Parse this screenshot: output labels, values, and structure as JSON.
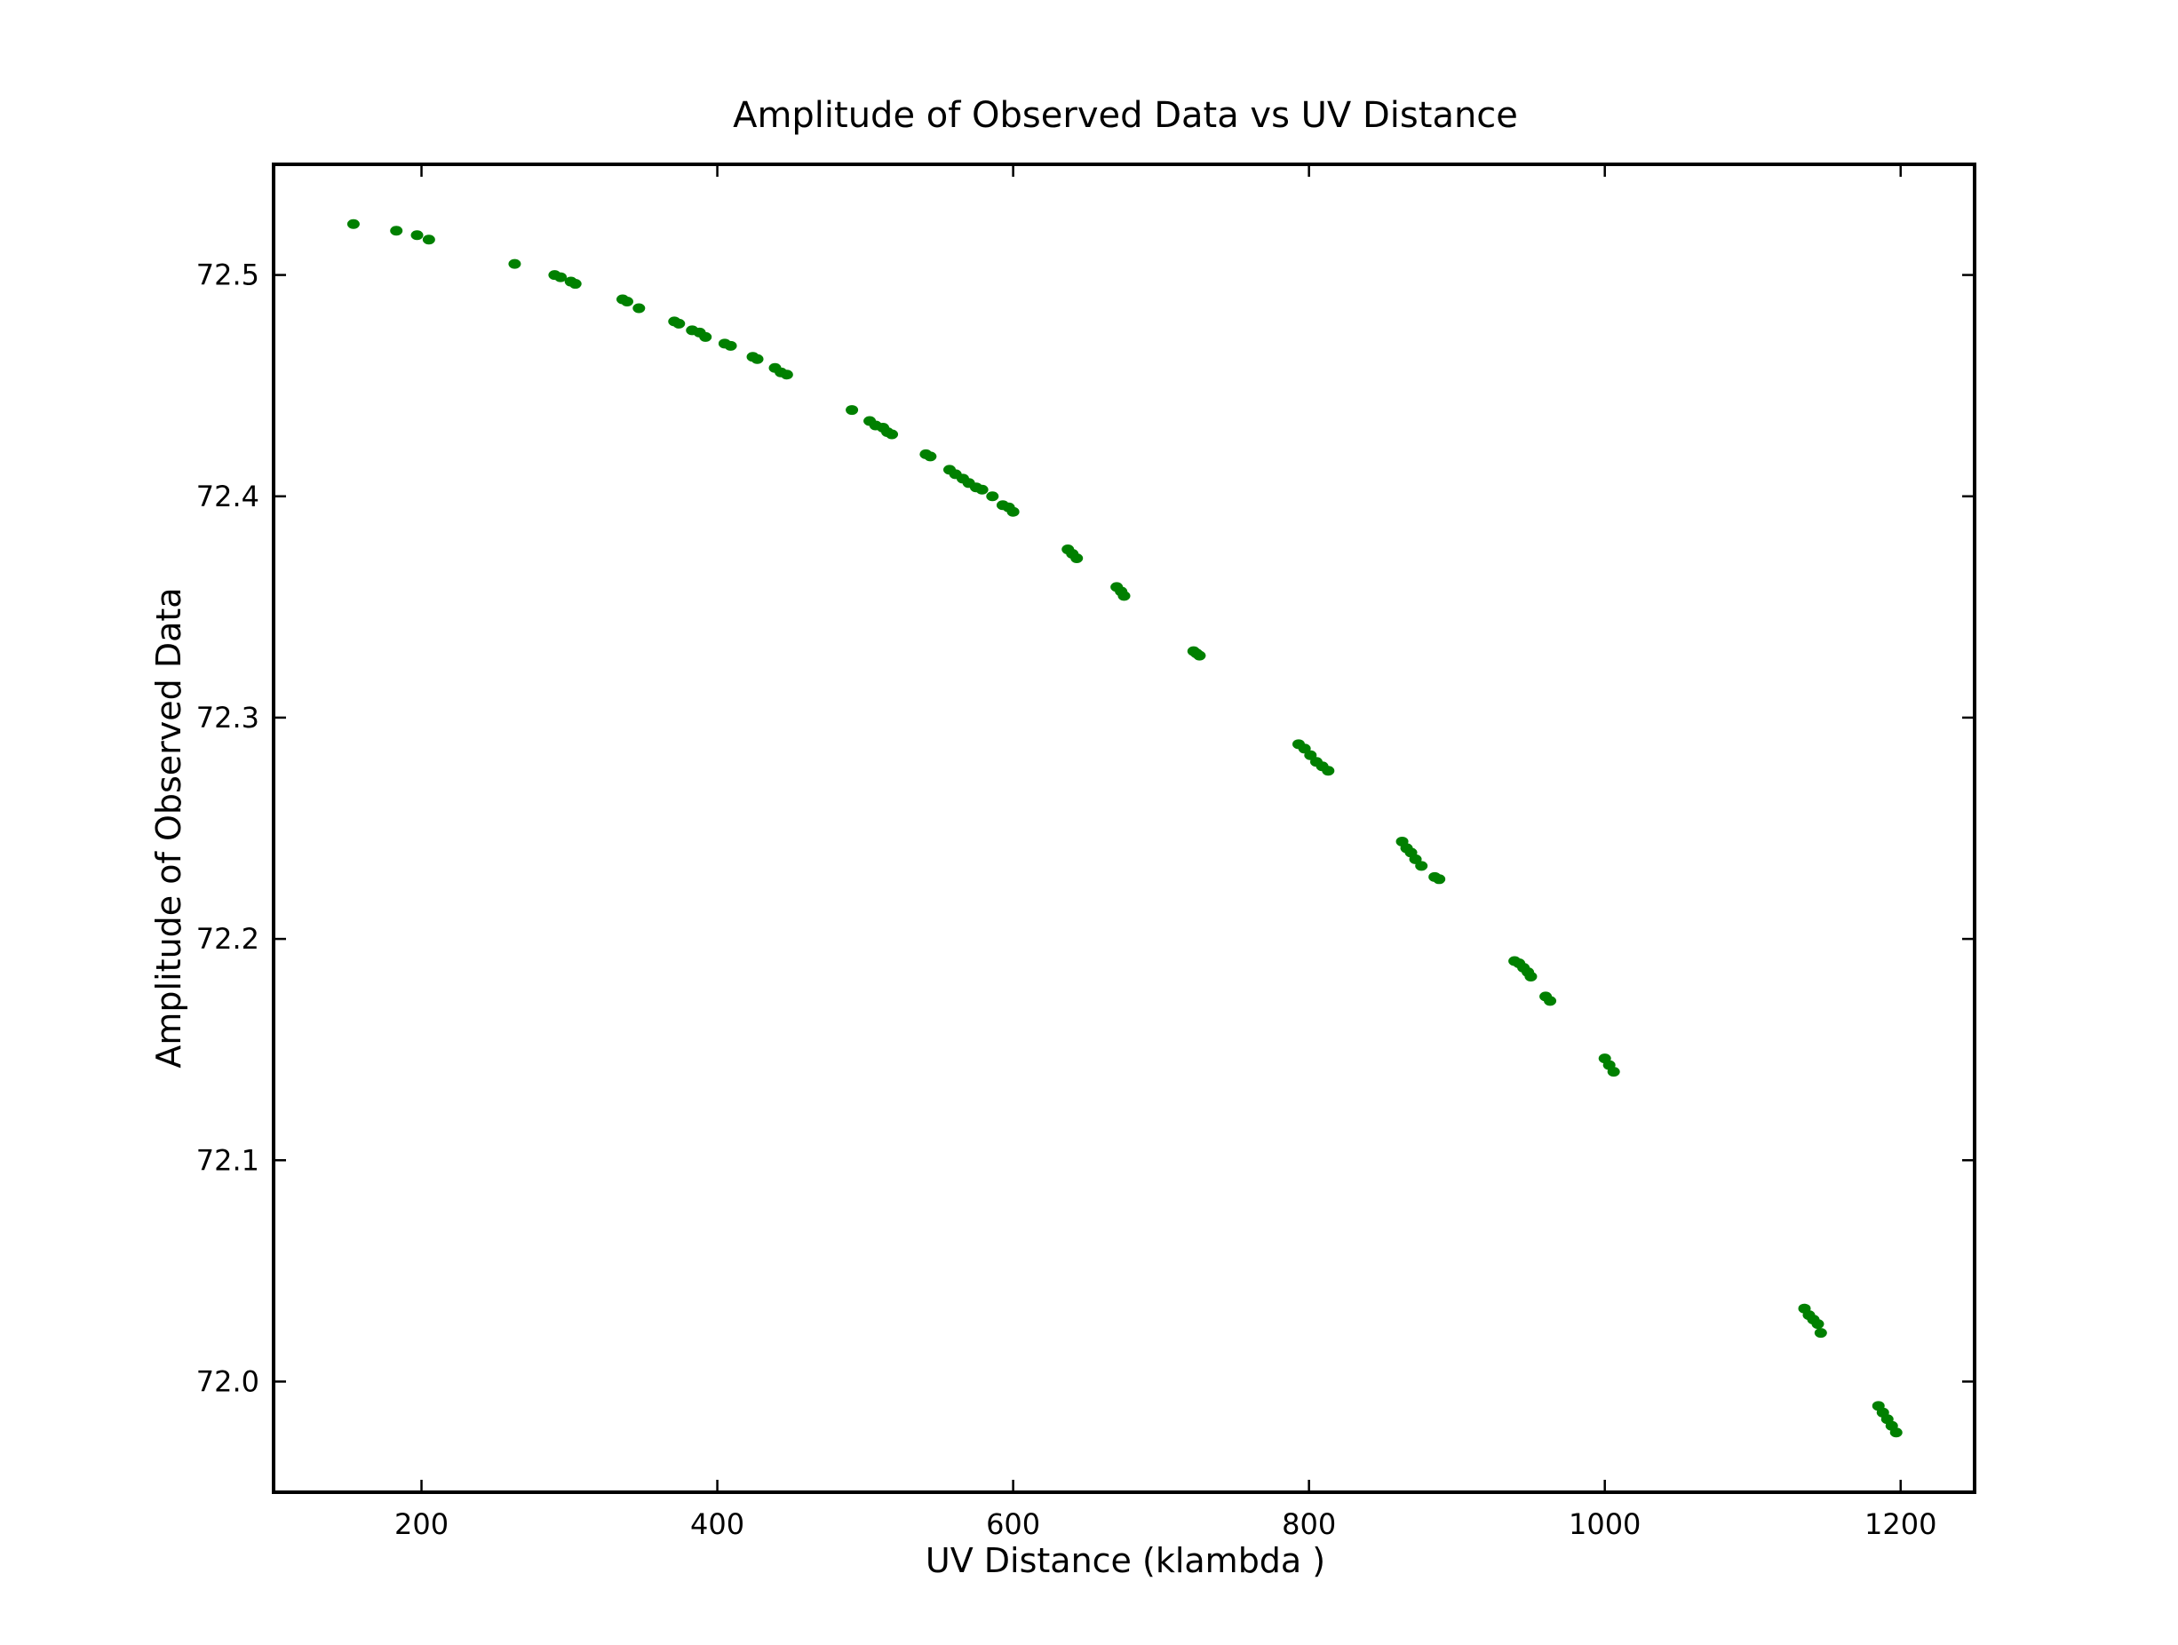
{
  "chart_data": {
    "type": "scatter",
    "title": "Amplitude of Observed Data vs UV Distance",
    "xlabel": "UV Distance (klambda )",
    "ylabel": "Amplitude of Observed Data",
    "xlim": [
      100,
      1250
    ],
    "ylim": [
      71.95,
      72.55
    ],
    "xticks": [
      200,
      400,
      600,
      800,
      1000,
      1200
    ],
    "xtick_labels": [
      "200",
      "400",
      "600",
      "800",
      "1000",
      "1200"
    ],
    "yticks": [
      72.0,
      72.1,
      72.2,
      72.3,
      72.4,
      72.5
    ],
    "ytick_labels": [
      "72.0",
      "72.1",
      "72.2",
      "72.3",
      "72.4",
      "72.5"
    ],
    "grid": false,
    "marker_color": "#008000",
    "series": [
      {
        "x": [
          154,
          183,
          197,
          205,
          263,
          290,
          294,
          301,
          304,
          336,
          339,
          347,
          371,
          374,
          383,
          388,
          392,
          405,
          409,
          424,
          427,
          439,
          443,
          447,
          491,
          503,
          507,
          512,
          515,
          518,
          541,
          544,
          557,
          561,
          566,
          570,
          575,
          579,
          586,
          593,
          597,
          600,
          637,
          640,
          643,
          670,
          673,
          675,
          722,
          724,
          726,
          793,
          797,
          801,
          805,
          809,
          813,
          863,
          866,
          869,
          872,
          876,
          885,
          888,
          939,
          942,
          945,
          948,
          950,
          960,
          963,
          1000,
          1003,
          1006,
          1135,
          1138,
          1141,
          1144,
          1146,
          1185,
          1188,
          1191,
          1194,
          1197
        ],
        "y": [
          72.523,
          72.52,
          72.518,
          72.516,
          72.505,
          72.5,
          72.499,
          72.497,
          72.496,
          72.489,
          72.488,
          72.485,
          72.479,
          72.478,
          72.475,
          72.474,
          72.472,
          72.469,
          72.468,
          72.463,
          72.462,
          72.458,
          72.456,
          72.455,
          72.439,
          72.434,
          72.432,
          72.431,
          72.429,
          72.428,
          72.419,
          72.418,
          72.412,
          72.41,
          72.408,
          72.406,
          72.404,
          72.403,
          72.4,
          72.396,
          72.395,
          72.393,
          72.376,
          72.374,
          72.372,
          72.359,
          72.357,
          72.355,
          72.33,
          72.329,
          72.328,
          72.288,
          72.286,
          72.283,
          72.28,
          72.278,
          72.276,
          72.244,
          72.241,
          72.239,
          72.236,
          72.233,
          72.228,
          72.227,
          72.19,
          72.189,
          72.187,
          72.185,
          72.183,
          72.174,
          72.172,
          72.146,
          72.143,
          72.14,
          72.033,
          72.03,
          72.028,
          72.026,
          72.022,
          71.989,
          71.986,
          71.983,
          71.98,
          71.977
        ]
      }
    ]
  }
}
